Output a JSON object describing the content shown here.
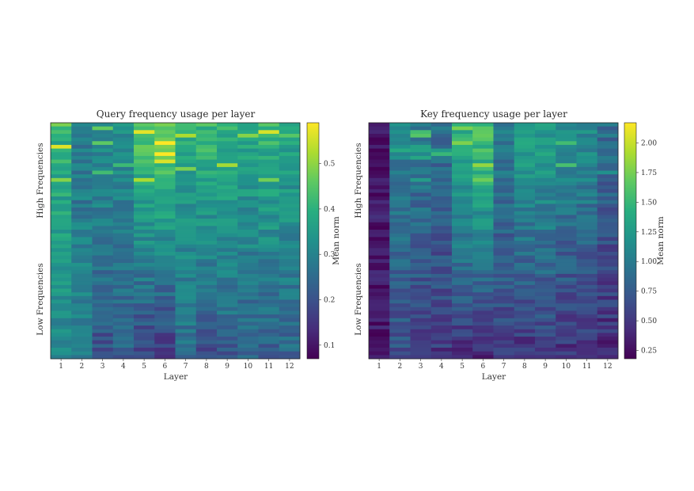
{
  "chart_data": [
    {
      "type": "heatmap",
      "title": "Query frequency usage per layer",
      "xlabel": "Layer",
      "ylabel_top": "High Frequencies",
      "ylabel_bottom": "Low Frequencies",
      "categories": [
        "1",
        "2",
        "3",
        "4",
        "5",
        "6",
        "7",
        "8",
        "9",
        "10",
        "11",
        "12"
      ],
      "colorbar": {
        "label": "Mean norm",
        "range": [
          0.07,
          0.59
        ],
        "ticks": [
          0.1,
          0.2,
          0.3,
          0.4,
          0.5
        ],
        "tick_labels": [
          "0.1",
          "0.2",
          "0.3",
          "0.4",
          "0.5"
        ]
      },
      "rows_approx": 64,
      "column_profile": [
        {
          "layer": 1,
          "high_mean": 0.4,
          "low_mean": 0.3
        },
        {
          "layer": 2,
          "high_mean": 0.28,
          "low_mean": 0.3
        },
        {
          "layer": 3,
          "high_mean": 0.33,
          "low_mean": 0.2
        },
        {
          "layer": 4,
          "high_mean": 0.32,
          "low_mean": 0.23
        },
        {
          "layer": 5,
          "high_mean": 0.45,
          "low_mean": 0.17
        },
        {
          "layer": 6,
          "high_mean": 0.47,
          "low_mean": 0.15
        },
        {
          "layer": 7,
          "high_mean": 0.38,
          "low_mean": 0.25
        },
        {
          "layer": 8,
          "high_mean": 0.42,
          "low_mean": 0.19
        },
        {
          "layer": 9,
          "high_mean": 0.4,
          "low_mean": 0.22
        },
        {
          "layer": 10,
          "high_mean": 0.38,
          "low_mean": 0.22
        },
        {
          "layer": 11,
          "high_mean": 0.41,
          "low_mean": 0.21
        },
        {
          "layer": 12,
          "high_mean": 0.37,
          "low_mean": 0.24
        }
      ]
    },
    {
      "type": "heatmap",
      "title": "Key frequency usage per layer",
      "xlabel": "Layer",
      "ylabel_top": "High Frequencies",
      "ylabel_bottom": "Low Frequencies",
      "categories": [
        "1",
        "2",
        "3",
        "4",
        "5",
        "6",
        "7",
        "8",
        "9",
        "10",
        "11",
        "12"
      ],
      "colorbar": {
        "label": "Mean norm",
        "range": [
          0.18,
          2.17
        ],
        "ticks": [
          0.25,
          0.5,
          0.75,
          1.0,
          1.25,
          1.5,
          1.75,
          2.0
        ],
        "tick_labels": [
          "0.25",
          "0.50",
          "0.75",
          "1.00",
          "1.25",
          "1.50",
          "1.75",
          "2.00"
        ]
      },
      "rows_approx": 64,
      "column_profile": [
        {
          "layer": 1,
          "high_mean": 0.3,
          "low_mean": 0.3
        },
        {
          "layer": 2,
          "high_mean": 1.05,
          "low_mean": 0.65
        },
        {
          "layer": 3,
          "high_mean": 1.0,
          "low_mean": 0.55
        },
        {
          "layer": 4,
          "high_mean": 0.9,
          "low_mean": 0.5
        },
        {
          "layer": 5,
          "high_mean": 1.45,
          "low_mean": 0.45
        },
        {
          "layer": 6,
          "high_mean": 1.6,
          "low_mean": 0.4
        },
        {
          "layer": 7,
          "high_mean": 1.0,
          "low_mean": 0.55
        },
        {
          "layer": 8,
          "high_mean": 1.3,
          "low_mean": 0.45
        },
        {
          "layer": 9,
          "high_mean": 1.3,
          "low_mean": 0.5
        },
        {
          "layer": 10,
          "high_mean": 1.15,
          "low_mean": 0.45
        },
        {
          "layer": 11,
          "high_mean": 1.15,
          "low_mean": 0.45
        },
        {
          "layer": 12,
          "high_mean": 0.9,
          "low_mean": 0.4
        }
      ]
    }
  ]
}
